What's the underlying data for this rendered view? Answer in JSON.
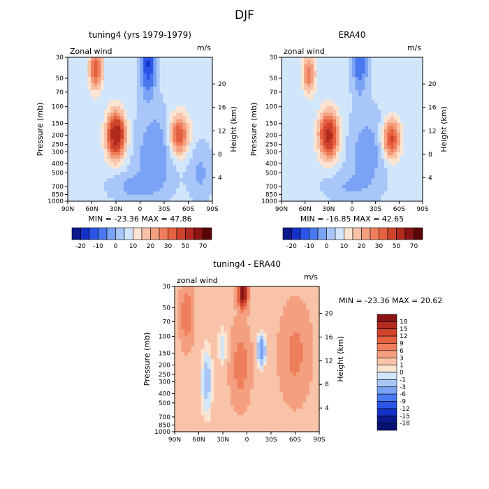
{
  "figure_title": "DJF",
  "chart_data": [
    {
      "type": "heatmap",
      "title": "tuning4 (yrs 1979-1979)",
      "variable": "Zonal wind",
      "units": "m/s",
      "xlabel": "",
      "ylabel": "Pressure (mb)",
      "y2label": "Height (km)",
      "x_ticks": [
        "90N",
        "60N",
        "30N",
        "0",
        "30S",
        "60S",
        "90S"
      ],
      "y_ticks": [
        "30",
        "50",
        "70",
        "100",
        "150",
        "200",
        "250",
        "300",
        "400",
        "500",
        "700",
        "850",
        "1000"
      ],
      "y2_ticks": [
        "20",
        "16",
        "12",
        "8",
        "4"
      ],
      "stats": "MIN = -23.36   MAX =  47.86",
      "colorbar_labels": [
        "-20",
        "-10",
        "0",
        "10",
        "20",
        "30",
        "50",
        "70"
      ],
      "colorbar_colors": [
        "#0a1a8a",
        "#1430c8",
        "#2a55e6",
        "#4a78f0",
        "#7aa2f5",
        "#a8c6f8",
        "#d2e6fb",
        "#fbe4d2",
        "#f8c3a8",
        "#f4a080",
        "#ef7f5c",
        "#e5603f",
        "#d0432b",
        "#b02a1e",
        "#8a1313",
        "#5a0505"
      ],
      "features": [
        {
          "cx": -55,
          "cp": 40,
          "rx": 8,
          "rp": 25,
          "v": 28
        },
        {
          "cx": -30,
          "cp": 200,
          "rx": 11,
          "rp": 140,
          "v": 48
        },
        {
          "cx": 48,
          "cp": 200,
          "rx": 12,
          "rp": 130,
          "v": 30
        },
        {
          "cx": 10,
          "cp": 35,
          "rx": 10,
          "rp": 40,
          "v": -22
        },
        {
          "cx": 20,
          "cp": 300,
          "rx": 25,
          "rp": 500,
          "v": -12
        },
        {
          "cx": -10,
          "cp": 700,
          "rx": 30,
          "rp": 300,
          "v": -8
        },
        {
          "cx": 75,
          "cp": 500,
          "rx": 15,
          "rp": 500,
          "v": -8
        }
      ]
    },
    {
      "type": "heatmap",
      "title": "ERA40",
      "variable": "zonal wind",
      "units": "m/s",
      "xlabel": "",
      "ylabel": "Pressure (mb)",
      "y2label": "Height (km)",
      "x_ticks": [
        "90N",
        "60N",
        "30N",
        "0",
        "30S",
        "60S",
        "90S"
      ],
      "y_ticks": [
        "30",
        "50",
        "70",
        "100",
        "150",
        "200",
        "250",
        "300",
        "400",
        "500",
        "700",
        "850",
        "1000"
      ],
      "y2_ticks": [
        "20",
        "16",
        "12",
        "8",
        "4"
      ],
      "stats": "MIN = -16.85   MAX =  42.65",
      "colorbar_labels": [
        "-20",
        "-10",
        "0",
        "10",
        "20",
        "30",
        "50",
        "70"
      ],
      "colorbar_colors": [
        "#0a1a8a",
        "#1430c8",
        "#2a55e6",
        "#4a78f0",
        "#7aa2f5",
        "#a8c6f8",
        "#d2e6fb",
        "#fbe4d2",
        "#f8c3a8",
        "#f4a080",
        "#ef7f5c",
        "#e5603f",
        "#d0432b",
        "#b02a1e",
        "#8a1313",
        "#5a0505"
      ],
      "features": [
        {
          "cx": -55,
          "cp": 45,
          "rx": 8,
          "rp": 25,
          "v": 22
        },
        {
          "cx": -30,
          "cp": 200,
          "rx": 12,
          "rp": 140,
          "v": 42
        },
        {
          "cx": 50,
          "cp": 220,
          "rx": 11,
          "rp": 130,
          "v": 32
        },
        {
          "cx": 10,
          "cp": 35,
          "rx": 10,
          "rp": 40,
          "v": -16
        },
        {
          "cx": 20,
          "cp": 300,
          "rx": 25,
          "rp": 500,
          "v": -10
        },
        {
          "cx": -10,
          "cp": 700,
          "rx": 30,
          "rp": 300,
          "v": -6
        }
      ]
    },
    {
      "type": "heatmap",
      "title": "tuning4 - ERA40",
      "variable": "zonal wind",
      "units": "m/s",
      "xlabel": "",
      "ylabel": "Pressure (mb)",
      "y2label": "Height (km)",
      "x_ticks": [
        "90N",
        "60N",
        "30N",
        "0",
        "30S",
        "60S",
        "90S"
      ],
      "y_ticks": [
        "30",
        "50",
        "70",
        "100",
        "150",
        "200",
        "250",
        "300",
        "400",
        "500",
        "700",
        "850",
        "1000"
      ],
      "y2_ticks": [
        "20",
        "16",
        "12",
        "8",
        "4"
      ],
      "stats": "MIN = -23.36   MAX =  20.62",
      "colorbar_labels": [
        "18",
        "15",
        "12",
        "9",
        "6",
        "3",
        "1",
        "0",
        "-1",
        "-3",
        "-6",
        "-9",
        "-12",
        "-15",
        "-18"
      ],
      "colorbar_colors": [
        "#8a1313",
        "#b02a1e",
        "#d0432b",
        "#e5603f",
        "#ef7f5c",
        "#f4a080",
        "#f8c3a8",
        "#fbe4d2",
        "#d2e6fb",
        "#a8c6f8",
        "#7aa2f5",
        "#4a78f0",
        "#2a55e6",
        "#1430c8",
        "#0a1a8a",
        "#061070"
      ],
      "features": [
        {
          "cx": -75,
          "cp": 60,
          "rx": 8,
          "rp": 60,
          "v": 7
        },
        {
          "cx": -5,
          "cp": 35,
          "rx": 6,
          "rp": 15,
          "v": 20
        },
        {
          "cx": -8,
          "cp": 200,
          "rx": 12,
          "rp": 300,
          "v": 6
        },
        {
          "cx": 60,
          "cp": 150,
          "rx": 18,
          "rp": 300,
          "v": 5
        },
        {
          "cx": 18,
          "cp": 140,
          "rx": 5,
          "rp": 60,
          "v": -8
        },
        {
          "cx": -50,
          "cp": 300,
          "rx": 7,
          "rp": 400,
          "v": -4
        },
        {
          "cx": -30,
          "cp": 130,
          "rx": 6,
          "rp": 80,
          "v": -3
        }
      ]
    }
  ]
}
